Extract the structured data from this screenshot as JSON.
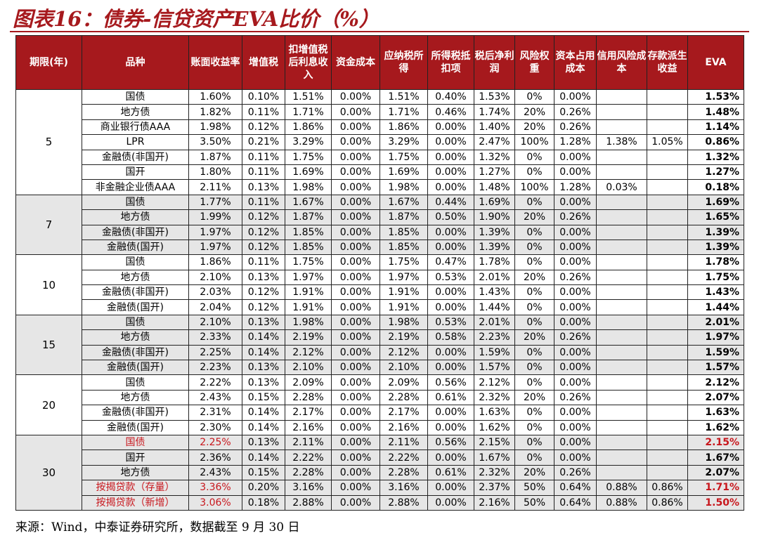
{
  "title": "图表16：债券-信贷资产EVA比价（%）",
  "footnote": "来源：Wind，中泰证券研究所，数据截至 9 月 30 日",
  "headers": [
    "期限(年)",
    "品种",
    "账面收益率",
    "增值税",
    "扣增值税后利息收入",
    "资金成本",
    "应纳税所得",
    "所得税抵扣项",
    "税后净利润",
    "风险权重",
    "资本占用成本",
    "信用风险成本",
    "存款派生收益",
    "EVA"
  ],
  "colors": {
    "accent": "#a6191d",
    "red_text": "#c8171d",
    "group_shade": "#e6e6e6"
  },
  "groups": [
    {
      "period": "5",
      "rows": [
        {
          "name": "国债",
          "vals": [
            "1.60%",
            "0.10%",
            "1.51%",
            "0.00%",
            "1.51%",
            "0.40%",
            "1.53%",
            "0%",
            "0.00%",
            "",
            ""
          ],
          "eva": "1.53%"
        },
        {
          "name": "地方债",
          "vals": [
            "1.82%",
            "0.11%",
            "1.71%",
            "0.00%",
            "1.71%",
            "0.46%",
            "1.74%",
            "20%",
            "0.26%",
            "",
            ""
          ],
          "eva": "1.48%"
        },
        {
          "name": "商业银行债AAA",
          "vals": [
            "1.98%",
            "0.12%",
            "1.86%",
            "0.00%",
            "1.86%",
            "0.00%",
            "1.40%",
            "20%",
            "0.26%",
            "",
            ""
          ],
          "eva": "1.14%"
        },
        {
          "name": "LPR",
          "vals": [
            "3.50%",
            "0.21%",
            "3.29%",
            "0.00%",
            "3.29%",
            "0.00%",
            "2.47%",
            "100%",
            "1.28%",
            "1.38%",
            "1.05%"
          ],
          "eva": "0.86%"
        },
        {
          "name": "金融债(非国开)",
          "vals": [
            "1.87%",
            "0.11%",
            "1.75%",
            "0.00%",
            "1.75%",
            "0.00%",
            "1.32%",
            "0%",
            "0.00%",
            "",
            ""
          ],
          "eva": "1.32%"
        },
        {
          "name": "国开",
          "vals": [
            "1.80%",
            "0.11%",
            "1.69%",
            "0.00%",
            "1.69%",
            "0.00%",
            "1.27%",
            "0%",
            "0.00%",
            "",
            ""
          ],
          "eva": "1.27%"
        },
        {
          "name": "非金融企业债AAA",
          "vals": [
            "2.11%",
            "0.13%",
            "1.98%",
            "0.00%",
            "1.98%",
            "0.00%",
            "1.48%",
            "100%",
            "1.28%",
            "0.03%",
            ""
          ],
          "eva": "0.18%"
        }
      ]
    },
    {
      "period": "7",
      "rows": [
        {
          "name": "国债",
          "vals": [
            "1.77%",
            "0.11%",
            "1.67%",
            "0.00%",
            "1.67%",
            "0.44%",
            "1.69%",
            "0%",
            "0.00%",
            "",
            ""
          ],
          "eva": "1.69%"
        },
        {
          "name": "地方债",
          "vals": [
            "1.99%",
            "0.12%",
            "1.87%",
            "0.00%",
            "1.87%",
            "0.50%",
            "1.90%",
            "20%",
            "0.26%",
            "",
            ""
          ],
          "eva": "1.65%"
        },
        {
          "name": "金融债(非国开)",
          "vals": [
            "1.97%",
            "0.12%",
            "1.85%",
            "0.00%",
            "1.85%",
            "0.00%",
            "1.39%",
            "0%",
            "0.00%",
            "",
            ""
          ],
          "eva": "1.39%"
        },
        {
          "name": "金融债(国开)",
          "vals": [
            "1.97%",
            "0.12%",
            "1.85%",
            "0.00%",
            "1.85%",
            "0.00%",
            "1.39%",
            "0%",
            "0.00%",
            "",
            ""
          ],
          "eva": "1.39%"
        }
      ]
    },
    {
      "period": "10",
      "rows": [
        {
          "name": "国债",
          "vals": [
            "1.86%",
            "0.11%",
            "1.75%",
            "0.00%",
            "1.75%",
            "0.47%",
            "1.78%",
            "0%",
            "0.00%",
            "",
            ""
          ],
          "eva": "1.78%"
        },
        {
          "name": "地方债",
          "vals": [
            "2.10%",
            "0.13%",
            "1.97%",
            "0.00%",
            "1.97%",
            "0.53%",
            "2.01%",
            "20%",
            "0.26%",
            "",
            ""
          ],
          "eva": "1.75%"
        },
        {
          "name": "金融债(非国开)",
          "vals": [
            "2.03%",
            "0.12%",
            "1.91%",
            "0.00%",
            "1.91%",
            "0.00%",
            "1.43%",
            "0%",
            "0.00%",
            "",
            ""
          ],
          "eva": "1.43%"
        },
        {
          "name": "金融债(国开)",
          "vals": [
            "2.04%",
            "0.12%",
            "1.91%",
            "0.00%",
            "1.91%",
            "0.00%",
            "1.44%",
            "0%",
            "0.00%",
            "",
            ""
          ],
          "eva": "1.44%"
        }
      ]
    },
    {
      "period": "15",
      "rows": [
        {
          "name": "国债",
          "vals": [
            "2.10%",
            "0.13%",
            "1.98%",
            "0.00%",
            "1.98%",
            "0.53%",
            "2.01%",
            "0%",
            "0.00%",
            "",
            ""
          ],
          "eva": "2.01%"
        },
        {
          "name": "地方债",
          "vals": [
            "2.33%",
            "0.14%",
            "2.19%",
            "0.00%",
            "2.19%",
            "0.58%",
            "2.23%",
            "20%",
            "0.26%",
            "",
            ""
          ],
          "eva": "1.97%"
        },
        {
          "name": "金融债(非国开)",
          "vals": [
            "2.25%",
            "0.14%",
            "2.12%",
            "0.00%",
            "2.12%",
            "0.00%",
            "1.59%",
            "0%",
            "0.00%",
            "",
            ""
          ],
          "eva": "1.59%"
        },
        {
          "name": "金融债(国开)",
          "vals": [
            "2.23%",
            "0.13%",
            "2.10%",
            "0.00%",
            "2.10%",
            "0.00%",
            "1.57%",
            "0%",
            "0.00%",
            "",
            ""
          ],
          "eva": "1.57%"
        }
      ]
    },
    {
      "period": "20",
      "rows": [
        {
          "name": "国债",
          "vals": [
            "2.22%",
            "0.13%",
            "2.09%",
            "0.00%",
            "2.09%",
            "0.56%",
            "2.12%",
            "0%",
            "0.00%",
            "",
            ""
          ],
          "eva": "2.12%"
        },
        {
          "name": "地方债",
          "vals": [
            "2.43%",
            "0.15%",
            "2.28%",
            "0.00%",
            "2.28%",
            "0.61%",
            "2.32%",
            "20%",
            "0.26%",
            "",
            ""
          ],
          "eva": "2.07%"
        },
        {
          "name": "金融债(非国开)",
          "vals": [
            "2.31%",
            "0.14%",
            "2.17%",
            "0.00%",
            "2.17%",
            "0.00%",
            "1.63%",
            "0%",
            "0.00%",
            "",
            ""
          ],
          "eva": "1.63%"
        },
        {
          "name": "金融债(国开)",
          "vals": [
            "2.30%",
            "0.14%",
            "2.16%",
            "0.00%",
            "2.16%",
            "0.00%",
            "1.62%",
            "0%",
            "0.00%",
            "",
            ""
          ],
          "eva": "1.62%"
        }
      ]
    },
    {
      "period": "30",
      "rows": [
        {
          "name": "国债",
          "vals": [
            "2.25%",
            "0.13%",
            "2.11%",
            "0.00%",
            "2.11%",
            "0.56%",
            "2.15%",
            "0%",
            "0.00%",
            "",
            ""
          ],
          "eva": "2.15%",
          "highlight": true
        },
        {
          "name": "国开",
          "vals": [
            "2.36%",
            "0.14%",
            "2.22%",
            "0.00%",
            "2.22%",
            "0.00%",
            "1.67%",
            "0%",
            "0.00%",
            "",
            ""
          ],
          "eva": "1.67%"
        },
        {
          "name": "地方债",
          "vals": [
            "2.43%",
            "0.15%",
            "2.28%",
            "0.00%",
            "2.28%",
            "0.61%",
            "2.32%",
            "20%",
            "0.26%",
            "",
            ""
          ],
          "eva": "2.07%"
        },
        {
          "name": "按揭贷款（存量）",
          "vals": [
            "3.36%",
            "0.20%",
            "3.16%",
            "0.00%",
            "3.16%",
            "0.00%",
            "2.37%",
            "50%",
            "0.64%",
            "0.88%",
            "0.86%"
          ],
          "eva": "1.71%",
          "highlight": true
        },
        {
          "name": "按揭贷款（新增）",
          "vals": [
            "3.06%",
            "0.18%",
            "2.88%",
            "0.00%",
            "2.88%",
            "0.00%",
            "2.16%",
            "50%",
            "0.64%",
            "0.88%",
            "0.86%"
          ],
          "eva": "1.50%",
          "highlight": true
        }
      ]
    }
  ]
}
